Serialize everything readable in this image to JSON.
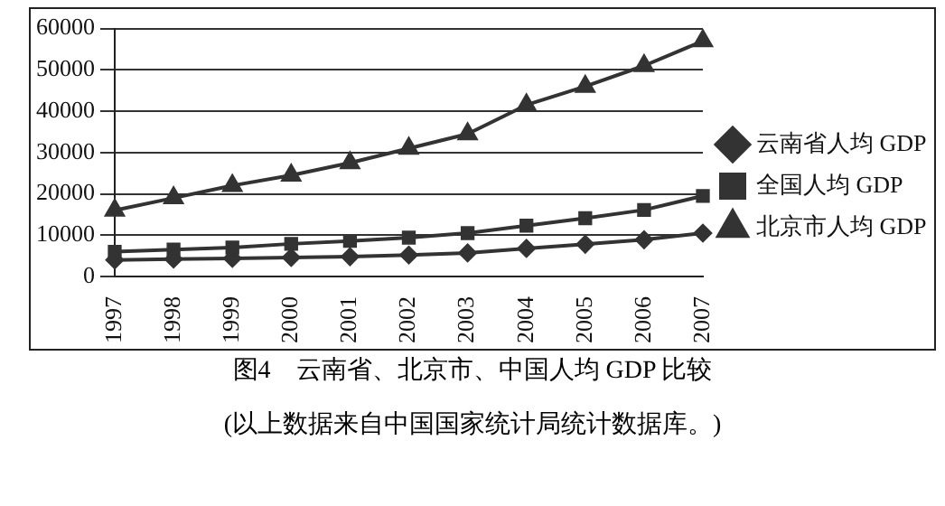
{
  "chart_data": {
    "type": "line",
    "title": "图4　云南省、北京市、中国人均 GDP 比较",
    "annotations": [
      "(以上数据来自中国国家统计局统计数据库。)"
    ],
    "categories": [
      "1997",
      "1998",
      "1999",
      "2000",
      "2001",
      "2002",
      "2003",
      "2004",
      "2005",
      "2006",
      "2007"
    ],
    "series": [
      {
        "name": "云南省人均 GDP",
        "color": "#333333",
        "marker": "diamond",
        "values": [
          4000,
          4200,
          4400,
          4600,
          4800,
          5200,
          5700,
          6800,
          7800,
          8900,
          10500
        ]
      },
      {
        "name": "全国人均 GDP",
        "color": "#333333",
        "marker": "square",
        "values": [
          6000,
          6500,
          7000,
          7900,
          8600,
          9400,
          10500,
          12300,
          14100,
          16100,
          19500
        ]
      },
      {
        "name": "北京市人均 GDP",
        "color": "#333333",
        "marker": "triangle",
        "values": [
          16000,
          19000,
          22000,
          24500,
          27500,
          31000,
          34500,
          41500,
          46000,
          51000,
          57000
        ]
      }
    ],
    "ylim": [
      0,
      60000
    ],
    "yticks": [
      0,
      10000,
      20000,
      30000,
      40000,
      50000,
      60000
    ],
    "grid": "y",
    "legend": "right"
  }
}
